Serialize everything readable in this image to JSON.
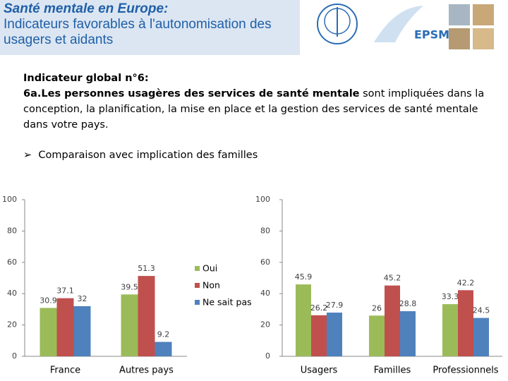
{
  "header": {
    "title_bold": "Santé mentale en Europe:",
    "title_rest": "Indicateurs favorables à l'autonomisation des usagers et aidants",
    "logo_text": "EPSM"
  },
  "indicator": {
    "heading": "Indicateur global n°6:",
    "lead": "6a.Les personnes usagères des services de santé mentale",
    "body": " sont impliquées dans la conception, la planification, la mise en place et la gestion  des services de santé mentale dans votre pays.",
    "bullet": "Comparaison avec implication des familles"
  },
  "chart_data": [
    {
      "type": "bar",
      "categories": [
        "France",
        "Autres pays"
      ],
      "series": [
        {
          "name": "Oui",
          "color": "#9bbb59",
          "values": [
            30.9,
            39.5
          ]
        },
        {
          "name": "Non",
          "color": "#c0504d",
          "values": [
            37.1,
            51.3
          ]
        },
        {
          "name": "Ne sait pas",
          "color": "#4f81bd",
          "values": [
            32,
            9.2
          ]
        }
      ],
      "ylim": [
        0,
        100
      ],
      "yticks": [
        0,
        20,
        40,
        60,
        80,
        100
      ],
      "legend": "right"
    },
    {
      "type": "bar",
      "categories": [
        "Usagers",
        "Familles",
        "Professionnels"
      ],
      "series": [
        {
          "color": "#9bbb59",
          "values": [
            45.9,
            26,
            33.3
          ]
        },
        {
          "color": "#c0504d",
          "values": [
            26.2,
            45.2,
            42.2
          ]
        },
        {
          "color": "#4f81bd",
          "values": [
            27.9,
            28.8,
            24.5
          ]
        }
      ],
      "ylim": [
        0,
        100
      ],
      "yticks": [
        0,
        20,
        40,
        60,
        80,
        100
      ]
    }
  ]
}
